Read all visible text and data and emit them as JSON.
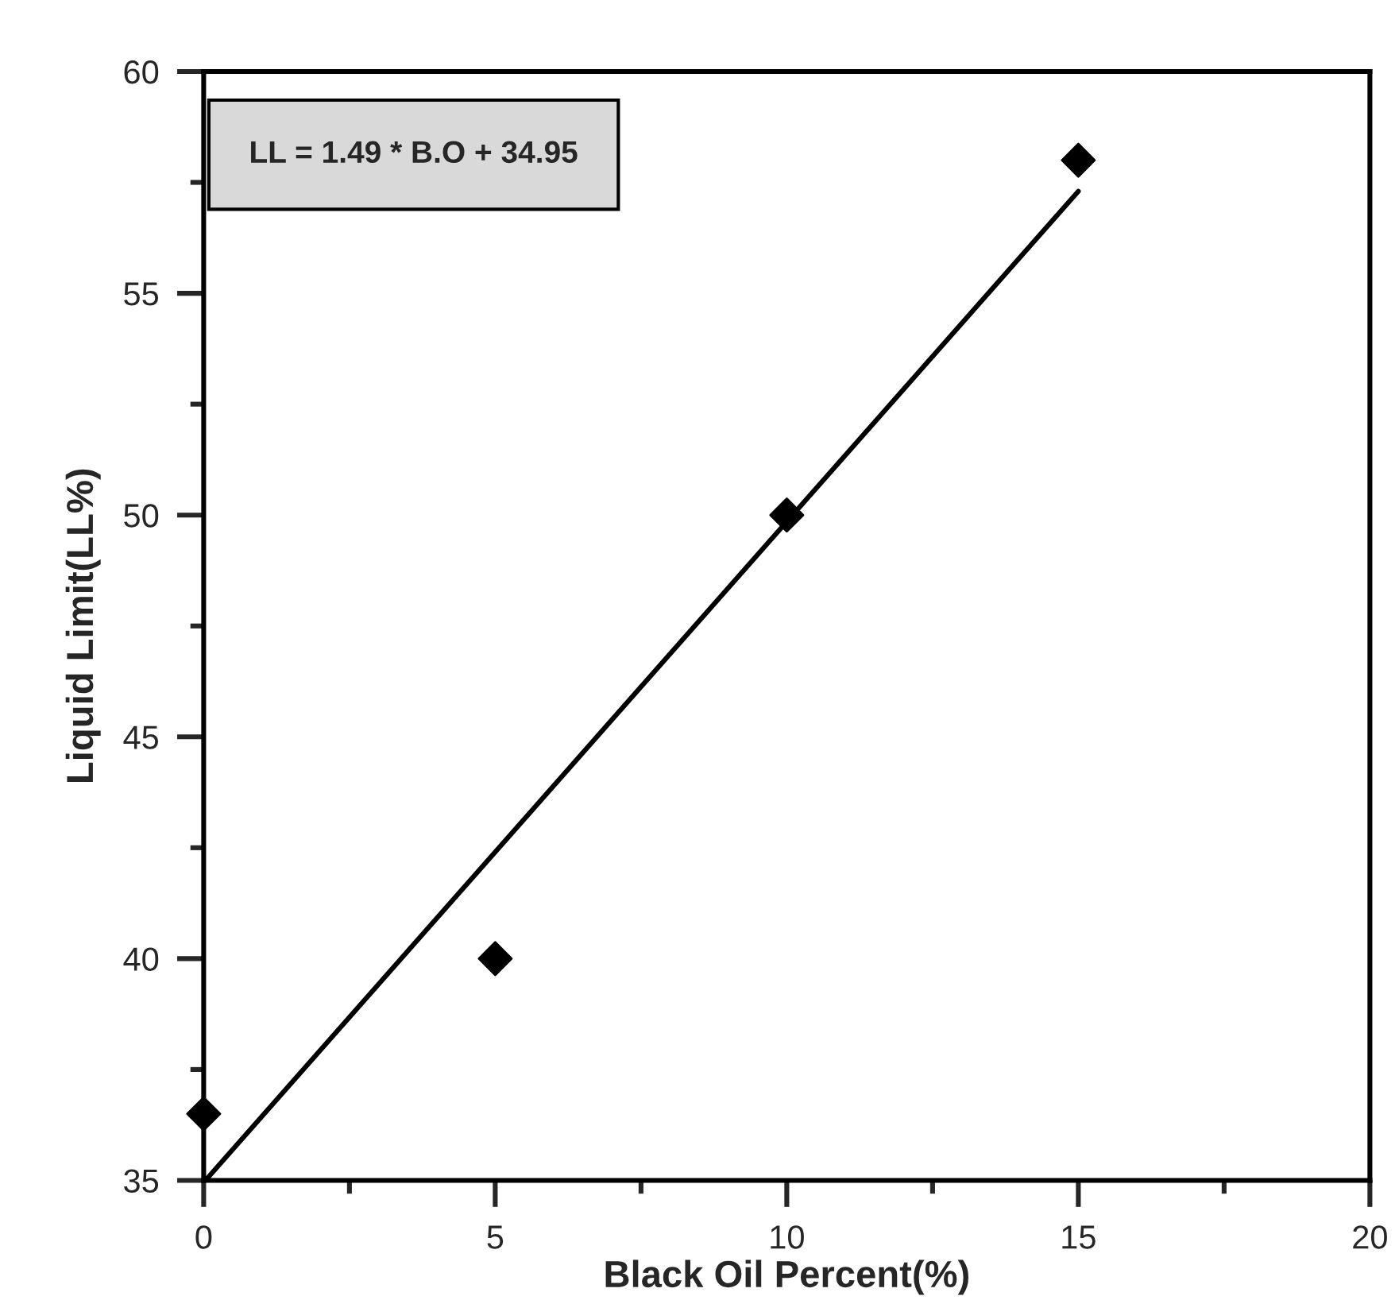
{
  "chart_data": {
    "type": "scatter",
    "xlabel": "Black Oil Percent(%)",
    "ylabel": "Liquid Limit(LL%)",
    "annotations": [
      "LL = 1.49 * B.O + 34.95"
    ],
    "series": [
      {
        "color": "#000000",
        "marker": "diamond",
        "x": [
          0,
          5,
          10,
          15
        ],
        "values": [
          36.5,
          40,
          50,
          58
        ]
      },
      {
        "type": "line",
        "color": "#000000",
        "marker": "none",
        "line_style": "solid",
        "x": [
          0.03,
          15
        ],
        "values": [
          35,
          57.3
        ]
      }
    ],
    "xlim": [
      0,
      20
    ],
    "xticks": [
      0,
      5,
      10,
      15,
      20
    ],
    "ylim": [
      35,
      60
    ],
    "yticks": [
      35,
      40,
      45,
      50,
      55,
      60
    ],
    "grid": false,
    "legend": false
  }
}
